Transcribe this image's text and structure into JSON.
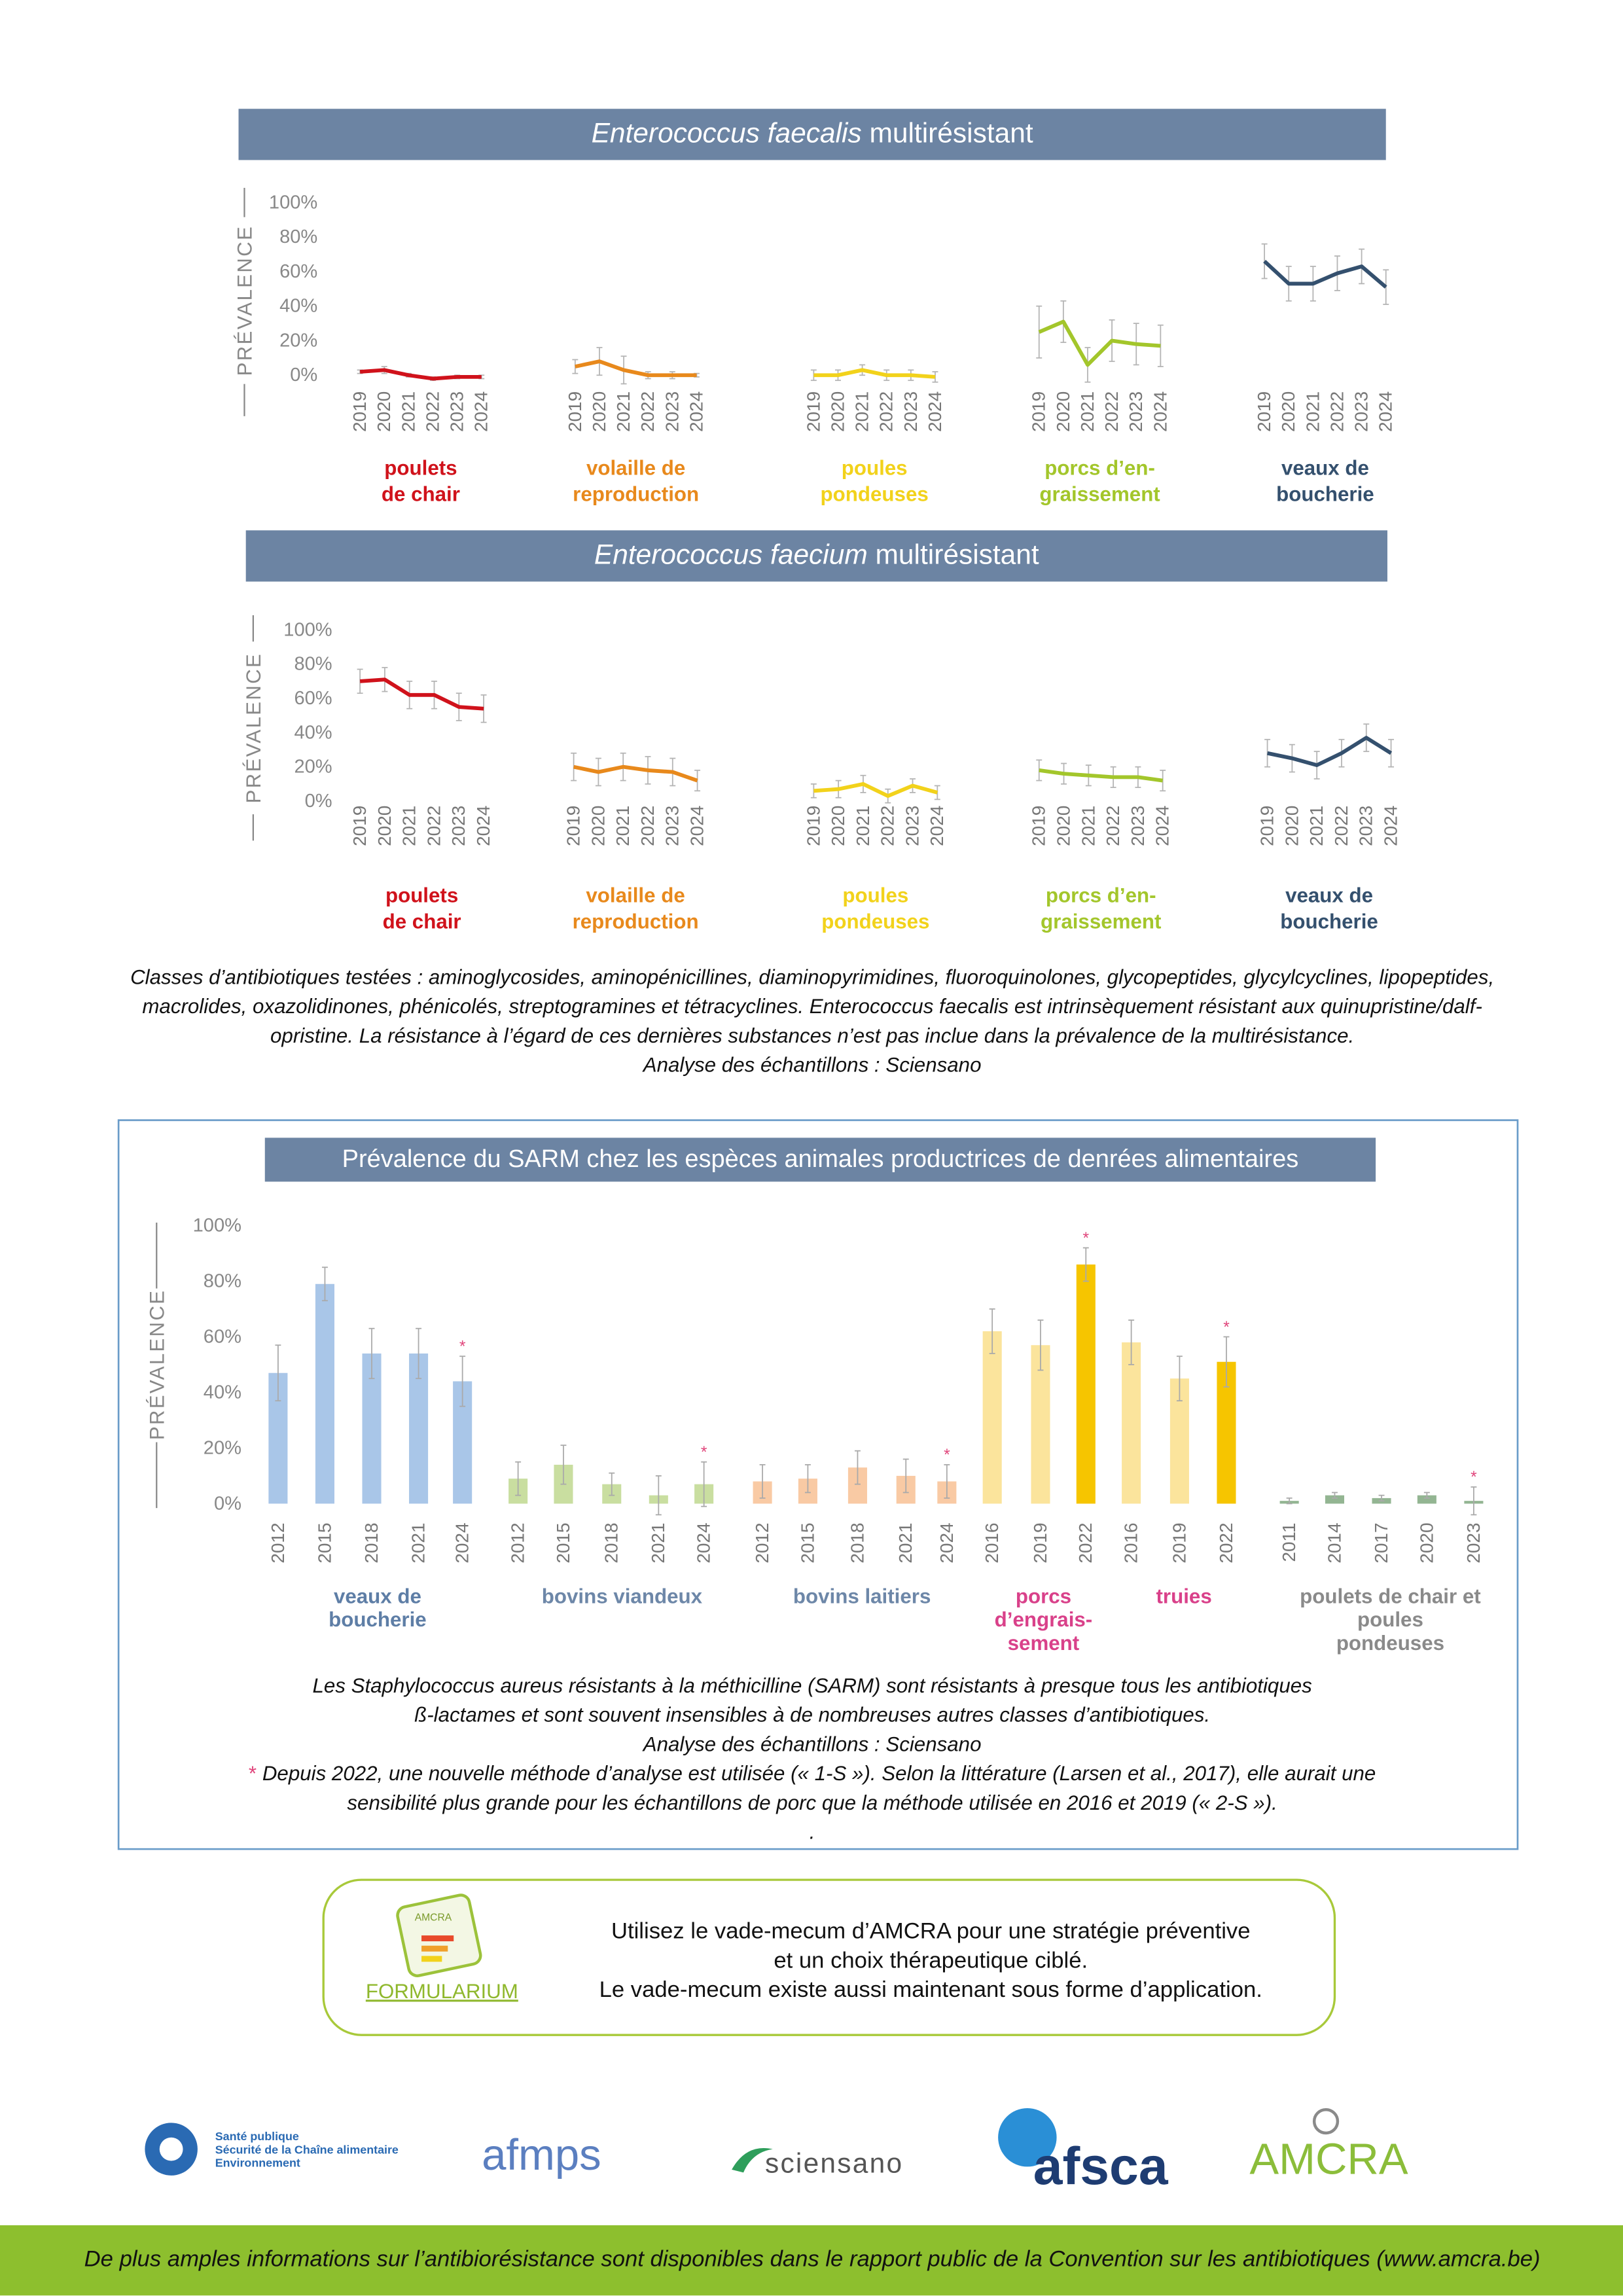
{
  "chart_data": [
    {
      "type": "line",
      "title_parts": [
        "Enterococcus faecalis",
        "multirésistant"
      ],
      "y_label": "PRÉVALENCE",
      "ylim": [
        0,
        100
      ],
      "yticks": [
        {
          "value": 0,
          "label": "0%"
        },
        {
          "value": 20,
          "label": "20%"
        },
        {
          "value": 40,
          "label": "40%"
        },
        {
          "value": 60,
          "label": "60%"
        },
        {
          "value": 80,
          "label": "80%"
        },
        {
          "value": 100,
          "label": "100%"
        }
      ],
      "groups": [
        {
          "name": [
            "poulets",
            "de chair"
          ],
          "color": "#d0121b",
          "categories": [
            "2019",
            "2020",
            "2021",
            "2022",
            "2023",
            "2024"
          ],
          "values": [
            2,
            3,
            0,
            -2,
            -1,
            -1
          ],
          "errors": [
            1,
            2,
            1,
            1,
            1,
            1
          ]
        },
        {
          "name": [
            "volaille de",
            "reproduction"
          ],
          "color": "#e8891c",
          "categories": [
            "2019",
            "2020",
            "2021",
            "2022",
            "2023",
            "2024"
          ],
          "values": [
            5,
            8,
            3,
            0,
            0,
            0
          ],
          "errors": [
            4,
            8,
            8,
            2,
            2,
            1
          ]
        },
        {
          "name": [
            "poules",
            "pondeuses"
          ],
          "color": "#f2d21b",
          "categories": [
            "2019",
            "2020",
            "2021",
            "2022",
            "2023",
            "2024"
          ],
          "values": [
            0,
            0,
            3,
            0,
            0,
            -1
          ],
          "errors": [
            3,
            3,
            3,
            3,
            3,
            3
          ]
        },
        {
          "name": [
            "porcs d’en-",
            "graissement"
          ],
          "color": "#a3c62b",
          "categories": [
            "2019",
            "2020",
            "2021",
            "2022",
            "2023",
            "2024"
          ],
          "values": [
            25,
            31,
            6,
            20,
            18,
            17
          ],
          "errors": [
            15,
            12,
            10,
            12,
            12,
            12
          ]
        },
        {
          "name": [
            "veaux de",
            "boucherie"
          ],
          "color": "#34506e",
          "categories": [
            "2019",
            "2020",
            "2021",
            "2022",
            "2023",
            "2024"
          ],
          "values": [
            66,
            53,
            53,
            59,
            63,
            51
          ],
          "errors": [
            10,
            10,
            10,
            10,
            10,
            10
          ]
        }
      ]
    },
    {
      "type": "line",
      "title_parts": [
        "Enterococcus faecium",
        "multirésistant"
      ],
      "y_label": "PRÉVALENCE",
      "ylim": [
        0,
        100
      ],
      "yticks": [
        {
          "value": 0,
          "label": "0%"
        },
        {
          "value": 20,
          "label": "20%"
        },
        {
          "value": 40,
          "label": "40%"
        },
        {
          "value": 60,
          "label": "60%"
        },
        {
          "value": 80,
          "label": "80%"
        },
        {
          "value": 100,
          "label": "100%"
        }
      ],
      "groups": [
        {
          "name": [
            "poulets",
            "de chair"
          ],
          "color": "#d0121b",
          "categories": [
            "2019",
            "2020",
            "2021",
            "2022",
            "2023",
            "2024"
          ],
          "values": [
            70,
            71,
            62,
            62,
            55,
            54
          ],
          "errors": [
            7,
            7,
            8,
            8,
            8,
            8
          ]
        },
        {
          "name": [
            "volaille de",
            "reproduction"
          ],
          "color": "#e8891c",
          "categories": [
            "2019",
            "2020",
            "2021",
            "2022",
            "2023",
            "2024"
          ],
          "values": [
            20,
            17,
            20,
            18,
            17,
            12
          ],
          "errors": [
            8,
            8,
            8,
            8,
            8,
            6
          ]
        },
        {
          "name": [
            "poules",
            "pondeuses"
          ],
          "color": "#f2d21b",
          "categories": [
            "2019",
            "2020",
            "2021",
            "2022",
            "2023",
            "2024"
          ],
          "values": [
            6,
            7,
            10,
            3,
            9,
            5
          ],
          "errors": [
            4,
            5,
            5,
            4,
            4,
            4
          ]
        },
        {
          "name": [
            "porcs d’en-",
            "graissement"
          ],
          "color": "#a3c62b",
          "categories": [
            "2019",
            "2020",
            "2021",
            "2022",
            "2023",
            "2024"
          ],
          "values": [
            18,
            16,
            15,
            14,
            14,
            12
          ],
          "errors": [
            6,
            6,
            6,
            6,
            6,
            6
          ]
        },
        {
          "name": [
            "veaux de",
            "boucherie"
          ],
          "color": "#34506e",
          "categories": [
            "2019",
            "2020",
            "2021",
            "2022",
            "2023",
            "2024"
          ],
          "values": [
            28,
            25,
            21,
            28,
            37,
            28
          ],
          "errors": [
            8,
            8,
            8,
            8,
            8,
            8
          ]
        }
      ],
      "notes": [
        "Classes d’antibiotiques testées : aminoglycosides, aminopénicillines, diaminopyrimidines, fluoroquinolones, glycopeptides, glycylcyclines, lipopeptides,",
        "macrolides, oxazolidinones, phénicolés, streptogramines et tétracyclines. Enterococcus faecalis est intrinsèquement résistant aux quinupristine/dalf-",
        "opristine. La résistance à l’égard de ces dernières substances n’est pas inclue dans la prévalence de la multirésistance.",
        "Analyse des échantillons : Sciensano"
      ]
    },
    {
      "type": "bar",
      "title": "Prévalence du SARM chez les espèces animales productrices de denrées alimentaires",
      "y_label": "PRÉVALENCE",
      "ylim": [
        0,
        100
      ],
      "yticks": [
        {
          "value": 0,
          "label": "0%"
        },
        {
          "value": 20,
          "label": "20%"
        },
        {
          "value": 40,
          "label": "40%"
        },
        {
          "value": 60,
          "label": "60%"
        },
        {
          "value": 80,
          "label": "80%"
        },
        {
          "value": 100,
          "label": "100%"
        }
      ],
      "asterisk": "*",
      "groups": [
        {
          "name": [
            "veaux de",
            "boucherie"
          ],
          "label_color": "#5e7ea6",
          "colors": [
            "#a9c6e8",
            "#a9c6e8",
            "#a9c6e8",
            "#a9c6e8",
            "#a9c6e8"
          ],
          "categories": [
            "2012",
            "2015",
            "2018",
            "2021",
            "2024"
          ],
          "values": [
            47,
            79,
            54,
            54,
            44
          ],
          "errors": [
            10,
            6,
            9,
            9,
            9
          ],
          "marked": [
            false,
            false,
            false,
            false,
            true
          ]
        },
        {
          "name": [
            "bovins viandeux"
          ],
          "label_color": "#6d87a8",
          "colors": [
            "#c9dea0",
            "#c9dea0",
            "#c9dea0",
            "#c9dea0",
            "#c9dea0"
          ],
          "categories": [
            "2012",
            "2015",
            "2018",
            "2021",
            "2024"
          ],
          "values": [
            9,
            14,
            7,
            3,
            7
          ],
          "errors": [
            6,
            7,
            4,
            7,
            8
          ],
          "marked": [
            false,
            false,
            false,
            false,
            true
          ]
        },
        {
          "name": [
            "bovins laitiers"
          ],
          "label_color": "#6d87a8",
          "colors": [
            "#f9caa4",
            "#f9caa4",
            "#f9caa4",
            "#f9caa4",
            "#f9caa4"
          ],
          "categories": [
            "2012",
            "2015",
            "2018",
            "2021",
            "2024"
          ],
          "values": [
            8,
            9,
            13,
            10,
            8
          ],
          "errors": [
            6,
            5,
            6,
            6,
            6
          ],
          "marked": [
            false,
            false,
            false,
            false,
            true
          ]
        },
        {
          "name": [
            "porcs",
            "d’engrais-",
            "sement"
          ],
          "label_color": "#d9418a",
          "colors": [
            "#fbe49c",
            "#fbe49c",
            "#f6c500"
          ],
          "categories": [
            "2016",
            "2019",
            "2022"
          ],
          "values": [
            62,
            57,
            86
          ],
          "errors": [
            8,
            9,
            6
          ],
          "marked": [
            false,
            false,
            true
          ]
        },
        {
          "name": [
            "truies"
          ],
          "label_color": "#d9418a",
          "colors": [
            "#fbe49c",
            "#fbe49c",
            "#f6c500"
          ],
          "categories": [
            "2016",
            "2019",
            "2022"
          ],
          "values": [
            58,
            45,
            51
          ],
          "errors": [
            8,
            8,
            9
          ],
          "marked": [
            false,
            false,
            true
          ]
        },
        {
          "name": [
            "poulets de chair et",
            "poules",
            "pondeuses"
          ],
          "label_color": "#8a8a8a",
          "colors": [
            "#93b592",
            "#93b592",
            "#93b592",
            "#93b592",
            "#93b592"
          ],
          "categories": [
            "2011",
            "2014",
            "2017",
            "2020",
            "2023"
          ],
          "values": [
            1,
            3,
            2,
            3,
            1
          ],
          "errors": [
            1,
            1,
            1,
            1,
            5
          ],
          "marked": [
            false,
            false,
            false,
            false,
            true
          ]
        }
      ],
      "notes": [
        "Les Staphylococcus aureus résistants à la méthicilline (SARM) sont résistants à presque tous les antibiotiques",
        "ß-lactames et sont souvent insensibles à de nombreuses autres classes d’antibiotiques.",
        "Analyse des échantillons : Sciensano",
        {
          "marker": "*",
          "text": "Depuis 2022, une nouvelle méthode d’analyse est utilisée (« 1-S »). Selon la littérature (Larsen et al., 2017), elle aurait une"
        },
        "sensibilité plus grande pour les échantillons de porc que la méthode utilisée en 2016 et 2019 (« 2-S »).",
        "."
      ]
    }
  ],
  "banner": {
    "logo_small": "AMCRA",
    "logo_label": "FORMULARIUM",
    "lines": [
      "Utilisez le vade-mecum d’AMCRA pour une stratégie préventive",
      "et un choix thérapeutique ciblé.",
      "Le vade-mecum existe aussi maintenant sous forme d’application."
    ]
  },
  "logos": {
    "spf": [
      "Santé publique",
      "Sécurité de la Chaîne alimentaire",
      "Environnement"
    ],
    "afmps": "afmps",
    "sciensano": "sciensano",
    "afsca": "afsca",
    "amcra": "AMCRA"
  },
  "footer": "De plus amples informations sur l’antibiorésistance sont disponibles dans le rapport public de la Convention sur les antibiotiques (www.amcra.be)"
}
